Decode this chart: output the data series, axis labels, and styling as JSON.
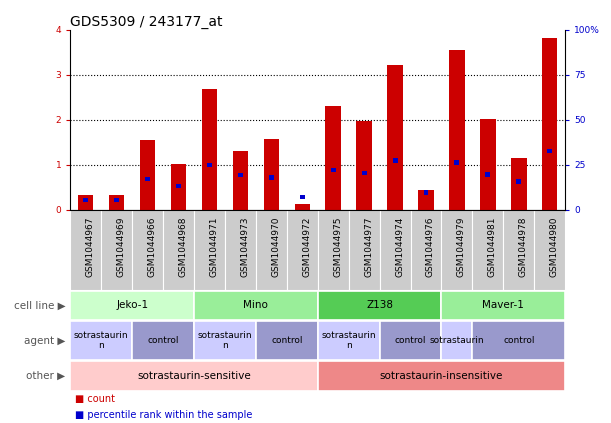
{
  "title": "GDS5309 / 243177_at",
  "samples": [
    "GSM1044967",
    "GSM1044969",
    "GSM1044966",
    "GSM1044968",
    "GSM1044971",
    "GSM1044973",
    "GSM1044970",
    "GSM1044972",
    "GSM1044975",
    "GSM1044977",
    "GSM1044974",
    "GSM1044976",
    "GSM1044979",
    "GSM1044981",
    "GSM1044978",
    "GSM1044980"
  ],
  "count_values": [
    0.32,
    0.33,
    1.55,
    1.02,
    2.68,
    1.3,
    1.57,
    0.13,
    2.3,
    1.98,
    3.22,
    0.45,
    3.55,
    2.02,
    1.15,
    3.82
  ],
  "percentile_values": [
    0.22,
    0.22,
    0.68,
    0.53,
    1.0,
    0.77,
    0.72,
    0.28,
    0.88,
    0.82,
    1.1,
    0.38,
    1.05,
    0.78,
    0.63,
    1.3
  ],
  "count_color": "#cc0000",
  "percentile_color": "#0000cc",
  "ylim_left": [
    0,
    4
  ],
  "ylim_right": [
    0,
    100
  ],
  "yticks_left": [
    0,
    1,
    2,
    3,
    4
  ],
  "yticks_right": [
    0,
    25,
    50,
    75,
    100
  ],
  "ytick_labels_right": [
    "0",
    "25",
    "50",
    "75",
    "100%"
  ],
  "cell_line_groups": [
    {
      "text": "Jeko-1",
      "start": 0,
      "end": 4,
      "color": "#ccffcc"
    },
    {
      "text": "Mino",
      "start": 4,
      "end": 8,
      "color": "#99ee99"
    },
    {
      "text": "Z138",
      "start": 8,
      "end": 12,
      "color": "#55cc55"
    },
    {
      "text": "Maver-1",
      "start": 12,
      "end": 16,
      "color": "#99ee99"
    }
  ],
  "agent_groups": [
    {
      "text": "sotrastaurin\nn",
      "start": 0,
      "end": 2,
      "color": "#ccccff"
    },
    {
      "text": "control",
      "start": 2,
      "end": 4,
      "color": "#9999cc"
    },
    {
      "text": "sotrastaurin\nn",
      "start": 4,
      "end": 6,
      "color": "#ccccff"
    },
    {
      "text": "control",
      "start": 6,
      "end": 8,
      "color": "#9999cc"
    },
    {
      "text": "sotrastaurin\nn",
      "start": 8,
      "end": 10,
      "color": "#ccccff"
    },
    {
      "text": "control",
      "start": 10,
      "end": 12,
      "color": "#9999cc"
    },
    {
      "text": "sotrastaurin",
      "start": 12,
      "end": 13,
      "color": "#ccccff"
    },
    {
      "text": "control",
      "start": 13,
      "end": 16,
      "color": "#9999cc"
    }
  ],
  "other_groups": [
    {
      "text": "sotrastaurin-sensitive",
      "start": 0,
      "end": 8,
      "color": "#ffcccc"
    },
    {
      "text": "sotrastaurin-insensitive",
      "start": 8,
      "end": 16,
      "color": "#ee8888"
    }
  ],
  "row_labels": [
    "cell line",
    "agent",
    "other"
  ],
  "bar_width": 0.5,
  "bg_color": "#ffffff",
  "title_fontsize": 10,
  "tick_fontsize": 6.5,
  "annot_fontsize": 7.5,
  "legend_fontsize": 7,
  "row_label_fontsize": 7.5
}
